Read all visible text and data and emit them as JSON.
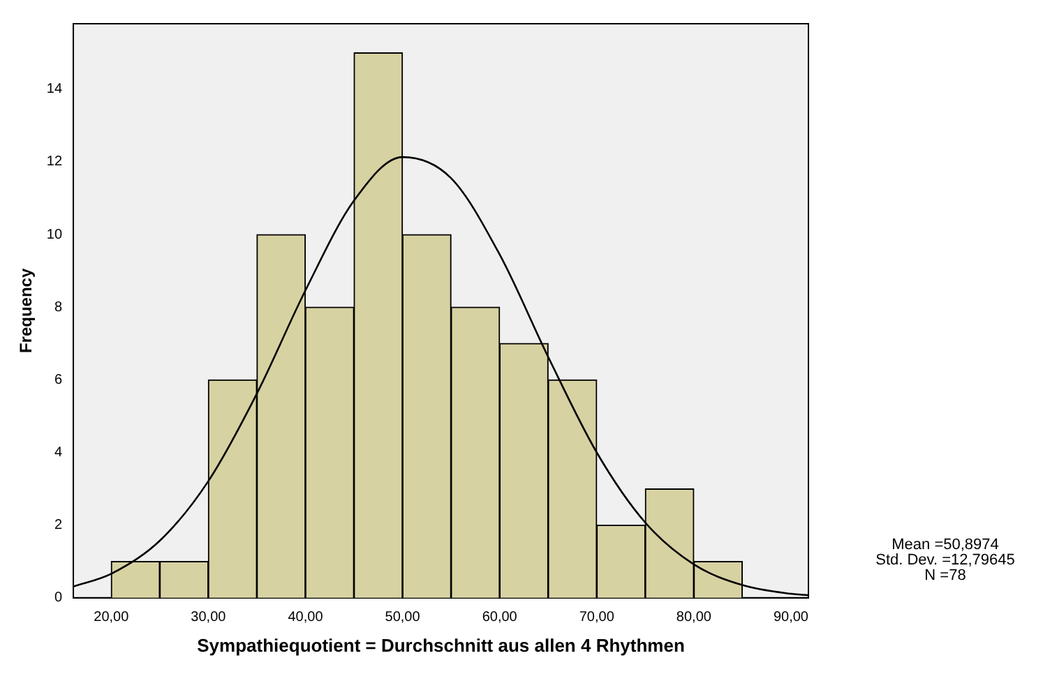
{
  "chart_data": {
    "type": "histogram",
    "xlabel": "Sympathiequotient = Durchschnitt aus allen 4 Rhythmen",
    "ylabel": "Frequency",
    "bins": [
      20,
      25,
      30,
      35,
      40,
      45,
      50,
      55,
      60,
      65,
      70,
      75,
      80,
      85
    ],
    "values": [
      1,
      1,
      6,
      10,
      8,
      15,
      10,
      8,
      7,
      6,
      2,
      3,
      1
    ],
    "color": "#d7d2a2",
    "series": [
      {
        "type": "line",
        "color": "#000000",
        "x": [
          16.1,
          20,
          25,
          30,
          35,
          40,
          45,
          50,
          55,
          60,
          65,
          70,
          75,
          80,
          85,
          90,
          91.8
        ],
        "values": [
          0.31,
          0.66,
          1.57,
          3.21,
          5.62,
          8.46,
          10.93,
          12.13,
          11.55,
          9.45,
          6.63,
          4.0,
          2.07,
          0.92,
          0.35,
          0.11,
          0.07
        ]
      }
    ],
    "xlim": [
      16.1,
      91.8
    ],
    "xticks": [
      {
        "value": 20,
        "label": "20,00"
      },
      {
        "value": 30,
        "label": "30,00"
      },
      {
        "value": 40,
        "label": "40,00"
      },
      {
        "value": 50,
        "label": "50,00"
      },
      {
        "value": 60,
        "label": "60,00"
      },
      {
        "value": 70,
        "label": "70,00"
      },
      {
        "value": 80,
        "label": "80,00"
      },
      {
        "value": 90,
        "label": "90,00"
      }
    ],
    "ylim": [
      0,
      15.8
    ],
    "yticks": [
      0,
      2,
      4,
      6,
      8,
      10,
      12,
      14
    ],
    "grid": false,
    "legend": false,
    "annotations": [
      "Mean =50,8974",
      "Std. Dev. =12,79645",
      "N =78"
    ]
  }
}
